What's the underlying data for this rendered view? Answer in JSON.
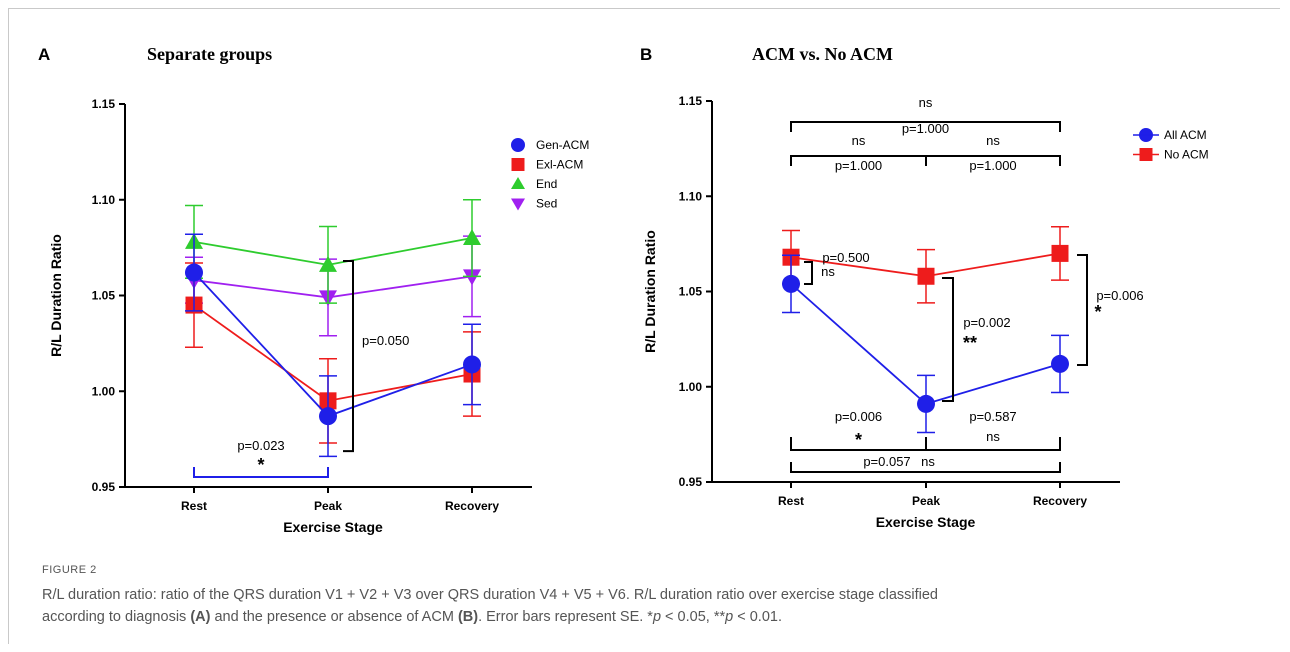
{
  "chart_data": [
    {
      "type": "line",
      "panel_label": "A",
      "title": "Separate groups",
      "xlabel": "Exercise Stage",
      "ylabel": "R/L Duration Ratio",
      "categories": [
        "Rest",
        "Peak",
        "Recovery"
      ],
      "ylim": [
        0.95,
        1.15
      ],
      "yticks": [
        "0.95",
        "1.00",
        "1.05",
        "1.10",
        "1.15"
      ],
      "legend_position": "top-right",
      "series": [
        {
          "name": "Gen-ACM",
          "color": "#1f1fe8",
          "marker": "circle",
          "values": [
            1.062,
            0.987,
            1.014
          ],
          "se": [
            0.02,
            0.021,
            0.021
          ]
        },
        {
          "name": "Exl-ACM",
          "color": "#ee1c1c",
          "marker": "square",
          "values": [
            1.045,
            0.995,
            1.009
          ],
          "se": [
            0.022,
            0.022,
            0.022
          ]
        },
        {
          "name": "End",
          "color": "#2ecc2e",
          "marker": "triangle-up",
          "values": [
            1.078,
            1.066,
            1.08
          ],
          "se": [
            0.019,
            0.02,
            0.02
          ]
        },
        {
          "name": "Sed",
          "color": "#a020f0",
          "marker": "triangle-down",
          "values": [
            1.058,
            1.049,
            1.06
          ],
          "se": [
            0.012,
            0.02,
            0.021
          ]
        }
      ],
      "annotations": [
        {
          "type": "bracket-v",
          "text": "p=0.050",
          "at": "Peak",
          "from": 0.987,
          "to": 1.068
        },
        {
          "type": "bracket-h",
          "text": "p=0.023",
          "star": "*",
          "from": "Rest",
          "to": "Peak",
          "y": 0.955,
          "color": "#1f1fe8"
        }
      ]
    },
    {
      "type": "line",
      "panel_label": "B",
      "title": "ACM vs. No ACM",
      "xlabel": "Exercise Stage",
      "ylabel": "R/L Duration Ratio",
      "categories": [
        "Rest",
        "Peak",
        "Recovery"
      ],
      "ylim": [
        0.95,
        1.15
      ],
      "yticks": [
        "0.95",
        "1.00",
        "1.05",
        "1.10",
        "1.15"
      ],
      "legend_position": "top-right",
      "series": [
        {
          "name": "All ACM",
          "color": "#1f1fe8",
          "marker": "circle",
          "values": [
            1.054,
            0.991,
            1.012
          ],
          "se": [
            0.015,
            0.015,
            0.015
          ]
        },
        {
          "name": "No ACM",
          "color": "#ee1c1c",
          "marker": "square",
          "values": [
            1.068,
            1.058,
            1.07
          ],
          "se": [
            0.014,
            0.014,
            0.014
          ]
        }
      ],
      "annotations": [
        {
          "type": "bracket-h",
          "top": "ns",
          "bottom": "p=1.000",
          "from": "Rest",
          "to": "Recovery",
          "y": 1.144
        },
        {
          "type": "bracket-h",
          "top": "ns",
          "bottom": "p=1.000",
          "from": "Rest",
          "to": "Peak",
          "y": 1.132
        },
        {
          "type": "bracket-h",
          "top": "ns",
          "bottom": "p=1.000",
          "from": "Peak",
          "to": "Recovery",
          "y": 1.132
        },
        {
          "type": "bracket-v-small",
          "p": "p=0.500",
          "sig": "ns",
          "at": "Rest",
          "from": 1.054,
          "to": 1.068
        },
        {
          "type": "bracket-v",
          "p": "p=0.002",
          "sig": "**",
          "at": "Peak",
          "from": 0.991,
          "to": 1.058
        },
        {
          "type": "bracket-v",
          "p": "p=0.006",
          "sig": "*",
          "at": "Recovery",
          "from": 1.012,
          "to": 1.07
        },
        {
          "type": "bracket-h-down",
          "top": "p=0.006",
          "sig": "*",
          "from": "Rest",
          "to": "Peak",
          "y": 0.966
        },
        {
          "type": "bracket-h-down",
          "top": "p=0.587",
          "sig": "ns",
          "from": "Peak",
          "to": "Recovery",
          "y": 0.966
        },
        {
          "type": "bracket-h-down",
          "top": "p=0.057",
          "sig": "ns",
          "from": "Rest",
          "to": "Recovery",
          "y": 0.957
        }
      ]
    }
  ],
  "caption": {
    "label": "FIGURE 2",
    "line1": "R/L duration ratio: ratio of the QRS duration V1 + V2 + V3 over QRS duration V4 + V5 + V6. R/L duration ratio over exercise stage classified",
    "line2_a": "according to diagnosis ",
    "line2_A": "(A)",
    "line2_b": " and the presence or absence of ACM ",
    "line2_B": "(B)",
    "line2_c": ". Error bars represent SE. *",
    "line2_p1": "p",
    "line2_d": " < 0.05, **",
    "line2_p2": "p",
    "line2_e": " < 0.01."
  }
}
